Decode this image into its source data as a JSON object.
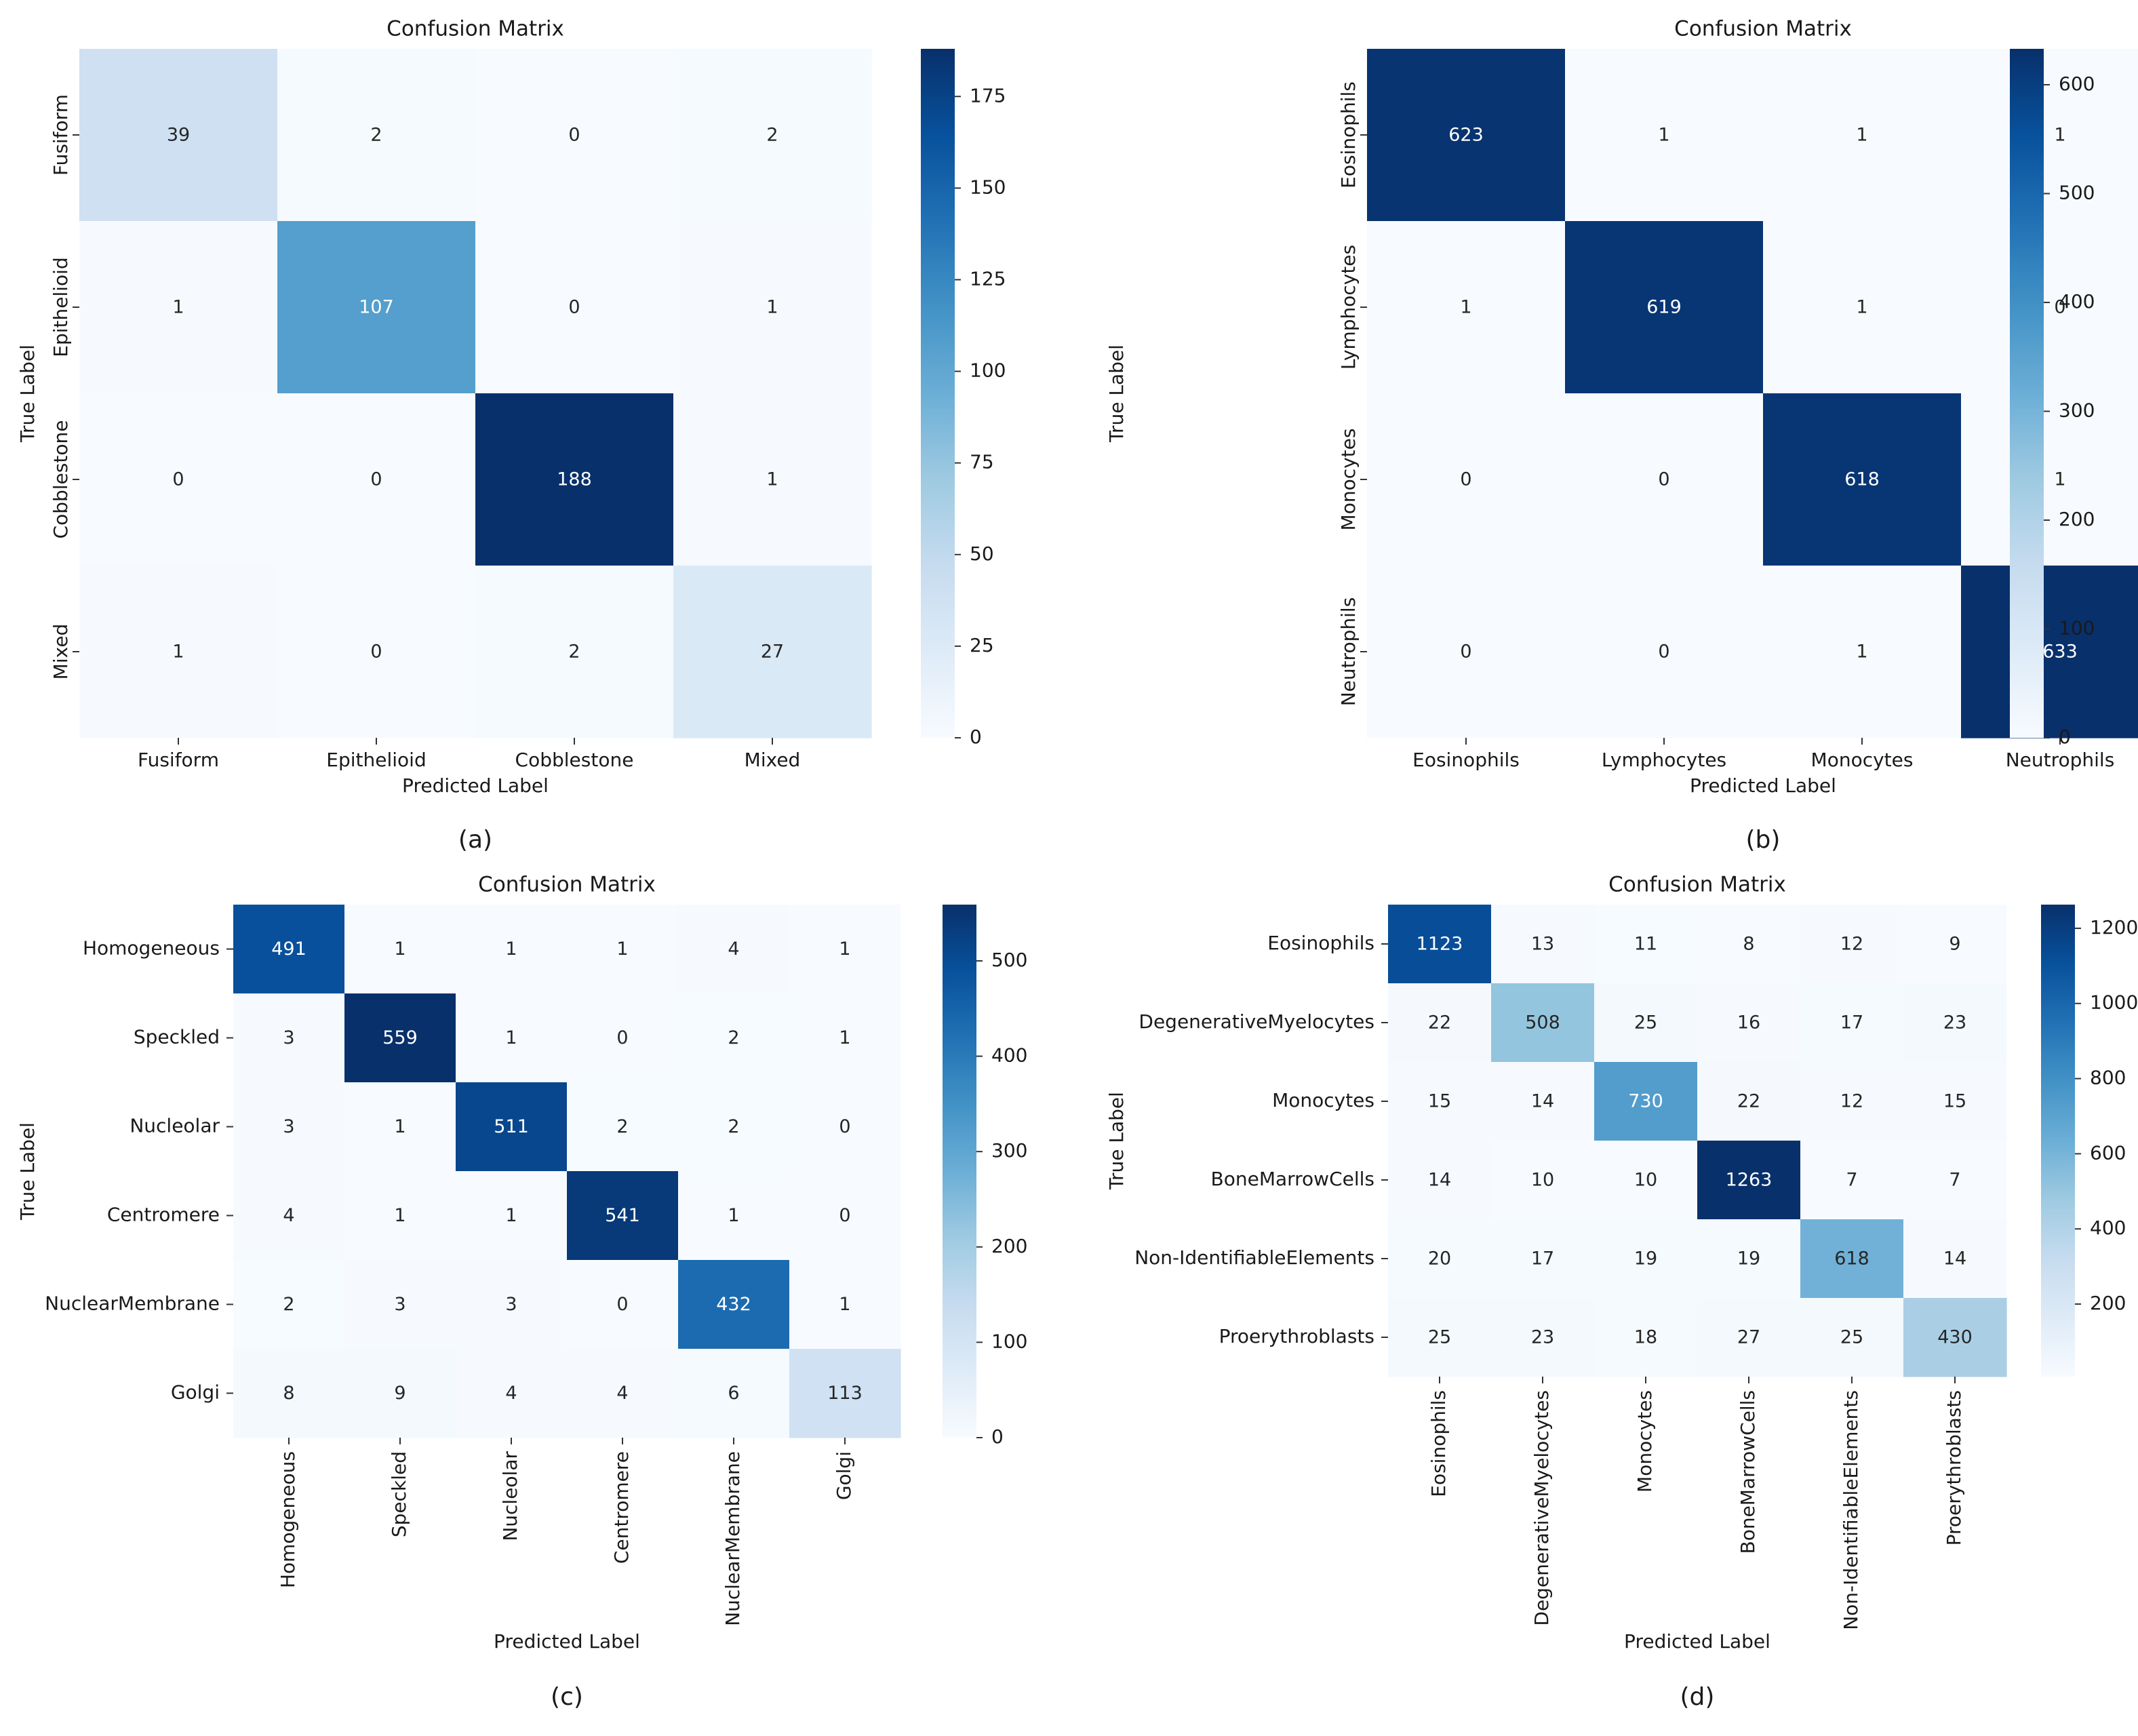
{
  "chart_data": [
    {
      "type": "heatmap",
      "panel_label": "(a)",
      "title": "Confusion Matrix",
      "xlabel": "Predicted Label",
      "ylabel": "True Label",
      "x_categories": [
        "Fusiform",
        "Epithelioid",
        "Cobblestone",
        "Mixed"
      ],
      "y_categories": [
        "Fusiform",
        "Epithelioid",
        "Cobblestone",
        "Mixed"
      ],
      "matrix": [
        [
          39,
          2,
          0,
          2
        ],
        [
          1,
          107,
          0,
          1
        ],
        [
          0,
          0,
          188,
          1
        ],
        [
          1,
          0,
          2,
          27
        ]
      ],
      "colorbar_ticks": [
        "0",
        "25",
        "50",
        "75",
        "100",
        "125",
        "150",
        "175"
      ],
      "color_range": [
        0,
        188
      ],
      "colormap": "Blues"
    },
    {
      "type": "heatmap",
      "panel_label": "(b)",
      "title": "Confusion Matrix",
      "xlabel": "Predicted Label",
      "ylabel": "True Label",
      "x_categories": [
        "Eosinophils",
        "Lymphocytes",
        "Monocytes",
        "Neutrophils"
      ],
      "y_categories": [
        "Eosinophils",
        "Lymphocytes",
        "Monocytes",
        "Neutrophils"
      ],
      "matrix": [
        [
          623,
          1,
          1,
          1
        ],
        [
          1,
          619,
          1,
          0
        ],
        [
          0,
          0,
          618,
          1
        ],
        [
          0,
          0,
          1,
          633
        ]
      ],
      "colorbar_ticks": [
        "0",
        "100",
        "200",
        "300",
        "400",
        "500",
        "600"
      ],
      "color_range": [
        0,
        633
      ],
      "colormap": "Blues"
    },
    {
      "type": "heatmap",
      "panel_label": "(c)",
      "title": "Confusion Matrix",
      "xlabel": "Predicted Label",
      "ylabel": "True Label",
      "x_categories": [
        "Homogeneous",
        "Speckled",
        "Nucleolar",
        "Centromere",
        "NuclearMembrane",
        "Golgi"
      ],
      "y_categories": [
        "Homogeneous",
        "Speckled",
        "Nucleolar",
        "Centromere",
        "NuclearMembrane",
        "Golgi"
      ],
      "matrix": [
        [
          491,
          1,
          1,
          1,
          4,
          1
        ],
        [
          3,
          559,
          1,
          0,
          2,
          1
        ],
        [
          3,
          1,
          511,
          2,
          2,
          0
        ],
        [
          4,
          1,
          1,
          541,
          1,
          0
        ],
        [
          2,
          3,
          3,
          0,
          432,
          1
        ],
        [
          8,
          9,
          4,
          4,
          6,
          113
        ]
      ],
      "colorbar_ticks": [
        "0",
        "100",
        "200",
        "300",
        "400",
        "500"
      ],
      "color_range": [
        0,
        559
      ],
      "colormap": "Blues"
    },
    {
      "type": "heatmap",
      "panel_label": "(d)",
      "title": "Confusion Matrix",
      "xlabel": "Predicted Label",
      "ylabel": "True Label",
      "x_categories": [
        "Eosinophils",
        "DegenerativeMyelocytes",
        "Monocytes",
        "BoneMarrowCells",
        "Non-IdentifiableElements",
        "Proerythroblasts"
      ],
      "y_categories": [
        "Eosinophils",
        "DegenerativeMyelocytes",
        "Monocytes",
        "BoneMarrowCells",
        "Non-IdentifiableElements",
        "Proerythroblasts"
      ],
      "matrix": [
        [
          1123,
          13,
          11,
          8,
          12,
          9
        ],
        [
          22,
          508,
          25,
          16,
          17,
          23
        ],
        [
          15,
          14,
          730,
          22,
          12,
          15
        ],
        [
          14,
          10,
          10,
          1263,
          7,
          7
        ],
        [
          20,
          17,
          19,
          19,
          618,
          14
        ],
        [
          25,
          23,
          18,
          27,
          25,
          430
        ]
      ],
      "colorbar_ticks": [
        "200",
        "400",
        "600",
        "800",
        "1000",
        "1200"
      ],
      "color_range": [
        7,
        1263
      ],
      "colormap": "Blues"
    }
  ]
}
